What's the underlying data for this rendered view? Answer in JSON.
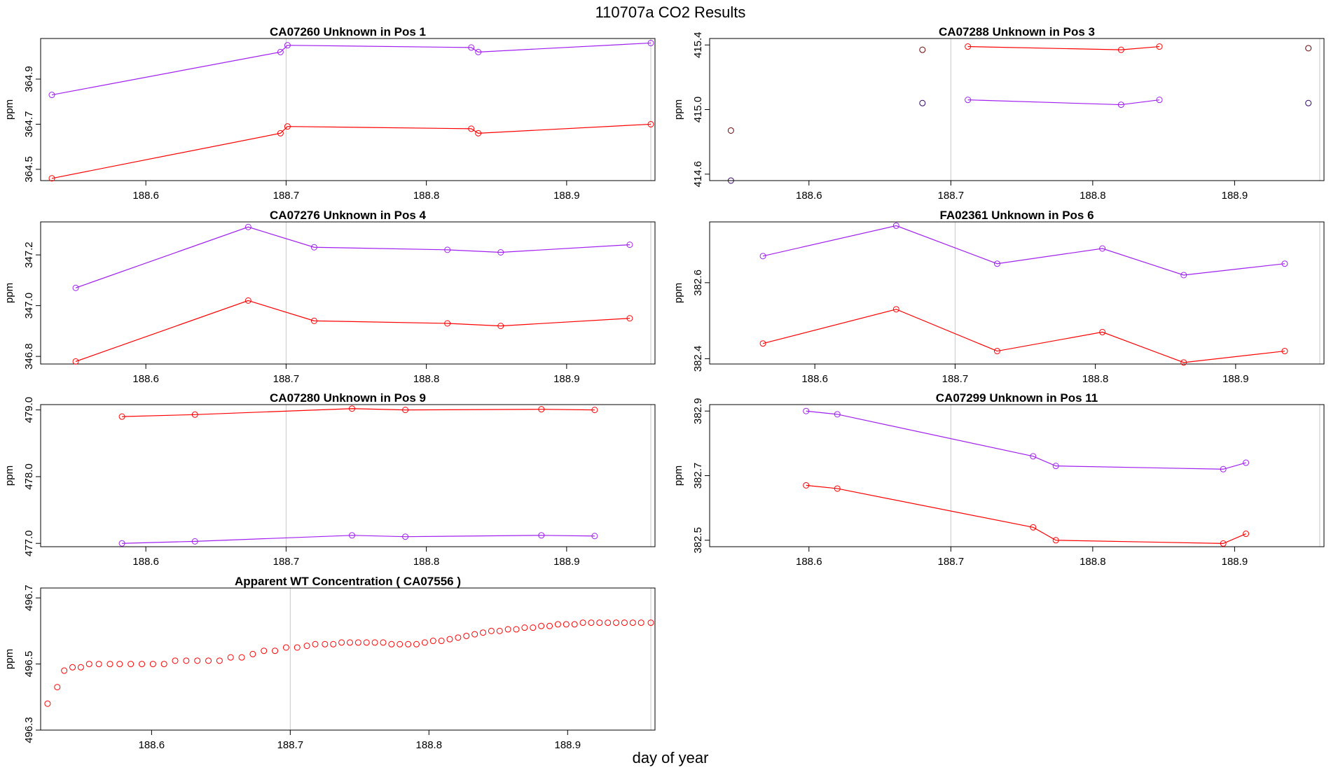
{
  "figure": {
    "title": "110707a  CO2 Results",
    "xlabel": "day of year"
  },
  "chart_data": [
    {
      "type": "line",
      "title": "CA07260    Unknown in Pos 1",
      "xlabel": "",
      "ylabel": "ppm",
      "xlim": [
        188.525,
        188.963
      ],
      "ylim": [
        364.45,
        365.08
      ],
      "xticks": [
        "188.6",
        "188.7",
        "188.8",
        "188.9"
      ],
      "yticks": [
        "364.5",
        "364.7",
        "364.9"
      ],
      "vlines": [
        188.7,
        188.96
      ],
      "series": [
        {
          "color": "#A020F0",
          "x": [
            188.533,
            188.696,
            188.701,
            188.832,
            188.837,
            188.96
          ],
          "y": [
            364.83,
            365.02,
            365.05,
            365.04,
            365.02,
            365.06
          ]
        },
        {
          "color": "#FF0000",
          "x": [
            188.533,
            188.696,
            188.701,
            188.832,
            188.837,
            188.96
          ],
          "y": [
            364.46,
            364.66,
            364.69,
            364.68,
            364.66,
            364.7
          ]
        }
      ]
    },
    {
      "type": "line",
      "title": "CA07288    Unknown in Pos 3",
      "xlabel": "",
      "ylabel": "ppm",
      "xlim": [
        188.53,
        188.963
      ],
      "ylim": [
        414.56,
        415.44
      ],
      "xticks": [
        "188.6",
        "188.7",
        "188.8",
        "188.9"
      ],
      "yticks": [
        "414.6",
        "415.0",
        "415.4"
      ],
      "vlines": [
        188.7,
        188.96
      ],
      "series": [
        {
          "color": "#FF0000",
          "x": [
            188.712,
            188.82,
            188.847
          ],
          "y": [
            415.39,
            415.37,
            415.39
          ]
        },
        {
          "color": "#A020F0",
          "x": [
            188.712,
            188.82,
            188.847
          ],
          "y": [
            415.06,
            415.03,
            415.06
          ]
        }
      ],
      "points": [
        {
          "color": "#660000",
          "x": [
            188.545,
            188.68,
            188.952
          ],
          "y": [
            414.87,
            415.37,
            415.38
          ]
        },
        {
          "color": "#330066",
          "x": [
            188.545,
            188.68,
            188.952
          ],
          "y": [
            414.56,
            415.04,
            415.04
          ]
        }
      ]
    },
    {
      "type": "line",
      "title": "CA07276    Unknown in Pos 4",
      "xlabel": "",
      "ylabel": "ppm",
      "xlim": [
        188.525,
        188.963
      ],
      "ylim": [
        346.77,
        347.33
      ],
      "xticks": [
        "188.6",
        "188.7",
        "188.8",
        "188.9"
      ],
      "yticks": [
        "346.8",
        "347.0",
        "347.2"
      ],
      "vlines": [
        188.7,
        188.96
      ],
      "series": [
        {
          "color": "#A020F0",
          "x": [
            188.55,
            188.673,
            188.72,
            188.815,
            188.853,
            188.945
          ],
          "y": [
            347.07,
            347.31,
            347.23,
            347.22,
            347.21,
            347.24
          ]
        },
        {
          "color": "#FF0000",
          "x": [
            188.55,
            188.673,
            188.72,
            188.815,
            188.853,
            188.945
          ],
          "y": [
            346.78,
            347.02,
            346.94,
            346.93,
            346.92,
            346.95
          ]
        }
      ]
    },
    {
      "type": "line",
      "title": "FA02361    Unknown in Pos 6",
      "xlabel": "",
      "ylabel": "ppm",
      "xlim": [
        188.525,
        188.963
      ],
      "ylim": [
        382.386,
        382.76
      ],
      "xticks": [
        "188.6",
        "188.7",
        "188.8",
        "188.9"
      ],
      "yticks": [
        "382.4",
        "382.6"
      ],
      "vlines": [
        188.7,
        188.96
      ],
      "series": [
        {
          "color": "#A020F0",
          "x": [
            188.563,
            188.658,
            188.73,
            188.805,
            188.863,
            188.935
          ],
          "y": [
            382.67,
            382.75,
            382.65,
            382.69,
            382.62,
            382.65
          ]
        },
        {
          "color": "#FF0000",
          "x": [
            188.563,
            188.658,
            188.73,
            188.805,
            188.863,
            188.935
          ],
          "y": [
            382.44,
            382.53,
            382.42,
            382.47,
            382.39,
            382.42
          ]
        }
      ]
    },
    {
      "type": "line",
      "title": "CA07280    Unknown in Pos 9",
      "xlabel": "",
      "ylabel": "ppm",
      "xlim": [
        188.525,
        188.963
      ],
      "ylim": [
        476.95,
        479.08
      ],
      "xticks": [
        "188.6",
        "188.7",
        "188.8",
        "188.9"
      ],
      "yticks": [
        "477.0",
        "478.0",
        "479.0"
      ],
      "vlines": [
        188.7,
        188.96
      ],
      "series": [
        {
          "color": "#FF0000",
          "x": [
            188.583,
            188.635,
            188.747,
            188.785,
            188.882,
            188.92
          ],
          "y": [
            478.9,
            478.93,
            479.02,
            479.0,
            479.01,
            479.0
          ]
        },
        {
          "color": "#A020F0",
          "x": [
            188.583,
            188.635,
            188.747,
            188.785,
            188.882,
            188.92
          ],
          "y": [
            477.0,
            477.03,
            477.12,
            477.1,
            477.12,
            477.11
          ]
        }
      ]
    },
    {
      "type": "line",
      "title": "CA07299    Unknown in Pos 11",
      "xlabel": "",
      "ylabel": "ppm",
      "xlim": [
        188.53,
        188.963
      ],
      "ylim": [
        382.48,
        382.92
      ],
      "xticks": [
        "188.6",
        "188.7",
        "188.8",
        "188.9"
      ],
      "yticks": [
        "382.5",
        "382.7",
        "382.9"
      ],
      "vlines": [
        188.7,
        188.96
      ],
      "series": [
        {
          "color": "#A020F0",
          "x": [
            188.598,
            188.62,
            188.758,
            188.774,
            188.892,
            188.908
          ],
          "y": [
            382.9,
            382.89,
            382.76,
            382.73,
            382.72,
            382.74
          ]
        },
        {
          "color": "#FF0000",
          "x": [
            188.598,
            188.62,
            188.758,
            188.774,
            188.892,
            188.908
          ],
          "y": [
            382.67,
            382.66,
            382.54,
            382.5,
            382.49,
            382.52
          ]
        }
      ]
    },
    {
      "type": "scatter",
      "title": "Apparent WT Concentration ( CA07556 )",
      "xlabel": "",
      "ylabel": "ppm",
      "xlim": [
        188.52,
        188.963
      ],
      "ylim": [
        496.3,
        496.73
      ],
      "xticks": [
        "188.6",
        "188.7",
        "188.8",
        "188.9"
      ],
      "yticks": [
        "496.3",
        "496.5",
        "496.7"
      ],
      "vlines": [
        188.7,
        188.96
      ],
      "series": [
        {
          "color": "#FF0000",
          "x": [
            188.525,
            188.532,
            188.537,
            188.543,
            188.549,
            188.555,
            188.562,
            188.57,
            188.577,
            188.585,
            188.593,
            188.601,
            188.609,
            188.617,
            188.625,
            188.633,
            188.641,
            188.649,
            188.657,
            188.665,
            188.673,
            188.681,
            188.689,
            188.697,
            188.705,
            188.712,
            188.718,
            188.725,
            188.731,
            188.737,
            188.743,
            188.749,
            188.755,
            188.761,
            188.767,
            188.773,
            188.779,
            188.785,
            188.791,
            188.797,
            188.803,
            188.809,
            188.815,
            188.821,
            188.827,
            188.833,
            188.839,
            188.845,
            188.851,
            188.857,
            188.863,
            188.869,
            188.875,
            188.881,
            188.887,
            188.893,
            188.899,
            188.905,
            188.911,
            188.917,
            188.923,
            188.929,
            188.935,
            188.941,
            188.947,
            188.953,
            188.96
          ],
          "y": [
            496.38,
            496.43,
            496.48,
            496.49,
            496.49,
            496.5,
            496.5,
            496.5,
            496.5,
            496.5,
            496.5,
            496.5,
            496.5,
            496.51,
            496.51,
            496.51,
            496.51,
            496.51,
            496.52,
            496.52,
            496.53,
            496.54,
            496.54,
            496.55,
            496.55,
            496.555,
            496.56,
            496.56,
            496.56,
            496.565,
            496.565,
            496.565,
            496.565,
            496.565,
            496.565,
            496.56,
            496.56,
            496.56,
            496.56,
            496.565,
            496.57,
            496.57,
            496.575,
            496.58,
            496.585,
            496.59,
            496.595,
            496.6,
            496.6,
            496.605,
            496.605,
            496.61,
            496.61,
            496.615,
            496.615,
            496.62,
            496.62,
            496.62,
            496.625,
            496.625,
            496.625,
            496.625,
            496.625,
            496.625,
            496.625,
            496.625,
            496.625
          ]
        }
      ]
    }
  ]
}
